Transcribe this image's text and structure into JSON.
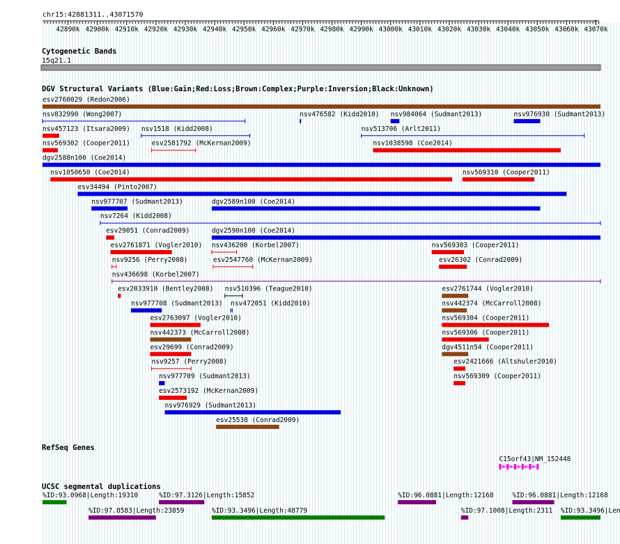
{
  "ruler": {
    "location": "chr15:42881311..43071570",
    "start": 42881311,
    "end": 43071570,
    "ticks": [
      "42890k",
      "42900k",
      "42910k",
      "42920k",
      "42930k",
      "42940k",
      "42950k",
      "42960k",
      "42970k",
      "42980k",
      "42990k",
      "43000k",
      "43010k",
      "43020k",
      "43030k",
      "43040k",
      "43050k",
      "43060k",
      "43070k"
    ]
  },
  "cytobands": {
    "title": "Cytogenetic Bands",
    "band": "15q21.1"
  },
  "dgv": {
    "title": "DGV Structural Variants (Blue:Gain;Red:Loss;Brown:Complex;Purple:Inversion;Black:Unknown)",
    "colors": {
      "gain": "#0000dd",
      "loss": "#ee0000",
      "complex": "#8b4513",
      "inversion": "#800080",
      "unknown": "#000000"
    },
    "features": [
      {
        "label": "esv2760029 (Redon2006)",
        "type": "complex",
        "start": 42881311,
        "end": 43071570,
        "row": 0,
        "glyph": "bar"
      },
      {
        "label": "nsv832990 (Wong2007)",
        "type": "gain",
        "start": 42881311,
        "end": 42950400,
        "row": 1,
        "glyph": "line"
      },
      {
        "label": "nsv476582 (Kidd2010)",
        "type": "gain",
        "start": 42969000,
        "end": 42969500,
        "row": 1,
        "glyph": "bar"
      },
      {
        "label": "nsv984064 (Sudmant2013)",
        "type": "gain",
        "start": 43000000,
        "end": 43003000,
        "row": 1,
        "glyph": "bar"
      },
      {
        "label": "nsv976930 (Sudmant2013)",
        "type": "gain",
        "start": 43042000,
        "end": 43051000,
        "row": 1,
        "glyph": "bar"
      },
      {
        "label": "nsv457123 (Itsara2009)",
        "type": "loss",
        "start": 42881311,
        "end": 42887000,
        "row": 2,
        "glyph": "bar"
      },
      {
        "label": "nsv1518 (Kidd2008)",
        "type": "gain",
        "start": 42915000,
        "end": 42952000,
        "row": 2,
        "glyph": "line"
      },
      {
        "label": "nsv513706 (Arlt2011)",
        "type": "gain",
        "start": 42990000,
        "end": 43066000,
        "row": 2,
        "glyph": "line"
      },
      {
        "label": "nsv569302 (Cooper2011)",
        "type": "loss",
        "start": 42881311,
        "end": 42886500,
        "row": 3,
        "glyph": "bar"
      },
      {
        "label": "esv2581792 (McKernan2009)",
        "type": "loss",
        "start": 42918500,
        "end": 42933500,
        "row": 3,
        "glyph": "line"
      },
      {
        "label": "nsv1038598 (Coe2014)",
        "type": "loss",
        "start": 42994000,
        "end": 43058000,
        "row": 3,
        "glyph": "bar"
      },
      {
        "label": "dgv2588n100 (Coe2014)",
        "type": "gain",
        "start": 42881311,
        "end": 43071570,
        "row": 4,
        "glyph": "bar"
      },
      {
        "label": "nsv1050650 (Coe2014)",
        "type": "loss",
        "start": 42884000,
        "end": 43021000,
        "row": 5,
        "glyph": "bar"
      },
      {
        "label": "nsv569310 (Cooper2011)",
        "type": "loss",
        "start": 43024500,
        "end": 43049000,
        "row": 5,
        "glyph": "bar"
      },
      {
        "label": "esv34494 (Pinto2007)",
        "type": "gain",
        "start": 42893300,
        "end": 43060000,
        "row": 6,
        "glyph": "bar"
      },
      {
        "label": "nsv977707 (Sudmant2013)",
        "type": "gain",
        "start": 42898000,
        "end": 42910300,
        "row": 7,
        "glyph": "bar"
      },
      {
        "label": "dgv2589n100 (Coe2014)",
        "type": "gain",
        "start": 42939000,
        "end": 43051000,
        "row": 7,
        "glyph": "bar"
      },
      {
        "label": "nsv7264 (Kidd2008)",
        "type": "gain",
        "start": 42901000,
        "end": 43071570,
        "row": 8,
        "glyph": "line"
      },
      {
        "label": "esv29051 (Conrad2009)",
        "type": "loss",
        "start": 42903000,
        "end": 42905800,
        "row": 9,
        "glyph": "bar"
      },
      {
        "label": "dgv2590n100 (Coe2014)",
        "type": "gain",
        "start": 42939000,
        "end": 43071570,
        "row": 9,
        "glyph": "bar"
      },
      {
        "label": "esv2761871 (Vogler2010)",
        "type": "loss",
        "start": 42904500,
        "end": 42925400,
        "row": 10,
        "glyph": "bar"
      },
      {
        "label": "nsv436200 (Korbel2007)",
        "type": "loss",
        "start": 42939000,
        "end": 42947500,
        "row": 10,
        "glyph": "line"
      },
      {
        "label": "nsv569303 (Cooper2011)",
        "type": "loss",
        "start": 43014000,
        "end": 43025000,
        "row": 10,
        "glyph": "bar"
      },
      {
        "label": "nsv9256 (Perry2008)",
        "type": "loss",
        "start": 42905000,
        "end": 42906500,
        "row": 11,
        "glyph": "line"
      },
      {
        "label": "esv2547760 (McKernan2009)",
        "type": "loss",
        "start": 42939500,
        "end": 42953000,
        "row": 11,
        "glyph": "line"
      },
      {
        "label": "esv26302 (Conrad2009)",
        "type": "loss",
        "start": 43016500,
        "end": 43026000,
        "row": 11,
        "glyph": "bar"
      },
      {
        "label": "nsv436698 (Korbel2007)",
        "type": "inversion",
        "start": 42905000,
        "end": 43071570,
        "row": 12,
        "glyph": "line"
      },
      {
        "label": "esv2033910 (Bentley2008)",
        "type": "loss",
        "start": 42907000,
        "end": 42908000,
        "row": 13,
        "glyph": "bar"
      },
      {
        "label": "nsv510396 (Teague2010)",
        "type": "unknown",
        "start": 42943500,
        "end": 42949500,
        "row": 13,
        "glyph": "line"
      },
      {
        "label": "esv2761744 (Vogler2010)",
        "type": "complex",
        "start": 43017500,
        "end": 43026500,
        "row": 13,
        "glyph": "bar"
      },
      {
        "label": "nsv977708 (Sudmant2013)",
        "type": "gain",
        "start": 42911500,
        "end": 42922000,
        "row": 14,
        "glyph": "bar"
      },
      {
        "label": "nsv472051 (Kidd2010)",
        "type": "gain",
        "start": 42945500,
        "end": 42946000,
        "row": 14,
        "glyph": "line"
      },
      {
        "label": "nsv442374 (McCarroll2008)",
        "type": "complex",
        "start": 43017500,
        "end": 43026000,
        "row": 14,
        "glyph": "bar"
      },
      {
        "label": "esv2763097 (Vogler2010)",
        "type": "loss",
        "start": 42918000,
        "end": 42935200,
        "row": 15,
        "glyph": "bar"
      },
      {
        "label": "nsv569304 (Cooper2011)",
        "type": "loss",
        "start": 43017500,
        "end": 43054000,
        "row": 15,
        "glyph": "bar"
      },
      {
        "label": "nsv442373 (McCarroll2008)",
        "type": "complex",
        "start": 42918000,
        "end": 42932000,
        "row": 16,
        "glyph": "bar"
      },
      {
        "label": "nsv569306 (Cooper2011)",
        "type": "loss",
        "start": 43017500,
        "end": 43033500,
        "row": 16,
        "glyph": "bar"
      },
      {
        "label": "esv29699 (Conrad2009)",
        "type": "loss",
        "start": 42918000,
        "end": 42932000,
        "row": 17,
        "glyph": "bar"
      },
      {
        "label": "dgv4511n54 (Cooper2011)",
        "type": "complex",
        "start": 43017500,
        "end": 43026500,
        "row": 17,
        "glyph": "bar"
      },
      {
        "label": "nsv9257 (Perry2008)",
        "type": "loss",
        "start": 42918500,
        "end": 42932000,
        "row": 18,
        "glyph": "line"
      },
      {
        "label": "esv2421666 (Altshuler2010)",
        "type": "loss",
        "start": 43021500,
        "end": 43025500,
        "row": 18,
        "glyph": "bar"
      },
      {
        "label": "nsv977709 (Sudmant2013)",
        "type": "gain",
        "start": 42921000,
        "end": 42923000,
        "row": 19,
        "glyph": "bar"
      },
      {
        "label": "nsv569309 (Cooper2011)",
        "type": "loss",
        "start": 43021500,
        "end": 43025500,
        "row": 19,
        "glyph": "bar"
      },
      {
        "label": "esv2573192 (McKernan2009)",
        "type": "loss",
        "start": 42921000,
        "end": 42930500,
        "row": 20,
        "glyph": "bar"
      },
      {
        "label": "nsv976929 (Sudmant2013)",
        "type": "gain",
        "start": 42923000,
        "end": 42983000,
        "row": 21,
        "glyph": "bar"
      },
      {
        "label": "esv25538 (Conrad2009)",
        "type": "complex",
        "start": 42940500,
        "end": 42962000,
        "row": 22,
        "glyph": "bar"
      }
    ]
  },
  "refseq": {
    "title": "RefSeq Genes",
    "genes": [
      {
        "label": "C15orf43|NM_152448",
        "start": 43037000,
        "end": 43050500,
        "color": "#ee00ee"
      }
    ]
  },
  "segdups": {
    "title": "UCSC segmental duplications",
    "features": [
      {
        "label": "%ID:93.0968|Length:19310",
        "start": 42881311,
        "end": 42889500,
        "row": 0,
        "color": "#008000"
      },
      {
        "label": "%ID:97.3126|Length:15852",
        "start": 42921000,
        "end": 42936500,
        "row": 0,
        "color": "#800080"
      },
      {
        "label": "%ID:96.0881|Length:12168",
        "start": 43002500,
        "end": 43015500,
        "row": 0,
        "color": "#800080"
      },
      {
        "label": "%ID:96.0881|Length:12168",
        "start": 43041500,
        "end": 43055800,
        "row": 0,
        "color": "#800080"
      },
      {
        "label": "%ID:97.8583|Length:23859",
        "start": 42897000,
        "end": 42920000,
        "row": 1,
        "color": "#800080"
      },
      {
        "label": "%ID:93.3496|Length:48779",
        "start": 42939000,
        "end": 42998000,
        "row": 1,
        "color": "#008000"
      },
      {
        "label": "%ID:97.1008|Length:2311",
        "start": 43024000,
        "end": 43026500,
        "row": 1,
        "color": "#800080"
      },
      {
        "label": "%ID:93.3496|Length:",
        "start": 43058000,
        "end": 43071570,
        "row": 1,
        "color": "#008000"
      }
    ]
  }
}
